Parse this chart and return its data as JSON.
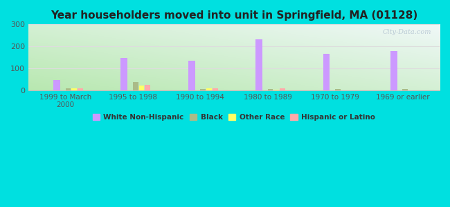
{
  "title": "Year householders moved into unit in Springfield, MA (01128)",
  "categories": [
    "1999 to March\n2000",
    "1995 to 1998",
    "1990 to 1994",
    "1980 to 1989",
    "1970 to 1979",
    "1969 or earlier"
  ],
  "series": {
    "White Non-Hispanic": [
      47,
      148,
      135,
      232,
      165,
      177
    ],
    "Black": [
      8,
      37,
      7,
      5,
      5,
      7
    ],
    "Other Race": [
      10,
      23,
      8,
      3,
      0,
      0
    ],
    "Hispanic or Latino": [
      8,
      25,
      8,
      8,
      0,
      0
    ]
  },
  "colors": {
    "White Non-Hispanic": "#cc99ff",
    "Black": "#aabb88",
    "Other Race": "#ffff66",
    "Hispanic or Latino": "#ffaaaa"
  },
  "grad_corners": {
    "bottom_left": "#b8e8b0",
    "top_left": "#d8eedd",
    "top_right": "#f0f8f8",
    "bottom_right": "#c8e8c0"
  },
  "figure_bg": "#00e0e0",
  "ylim": [
    0,
    300
  ],
  "yticks": [
    0,
    100,
    200,
    300
  ],
  "bar_width": 0.08,
  "white_bar_width": 0.1,
  "legend_labels": [
    "White Non-Hispanic",
    "Black",
    "Other Race",
    "Hispanic or Latino"
  ]
}
